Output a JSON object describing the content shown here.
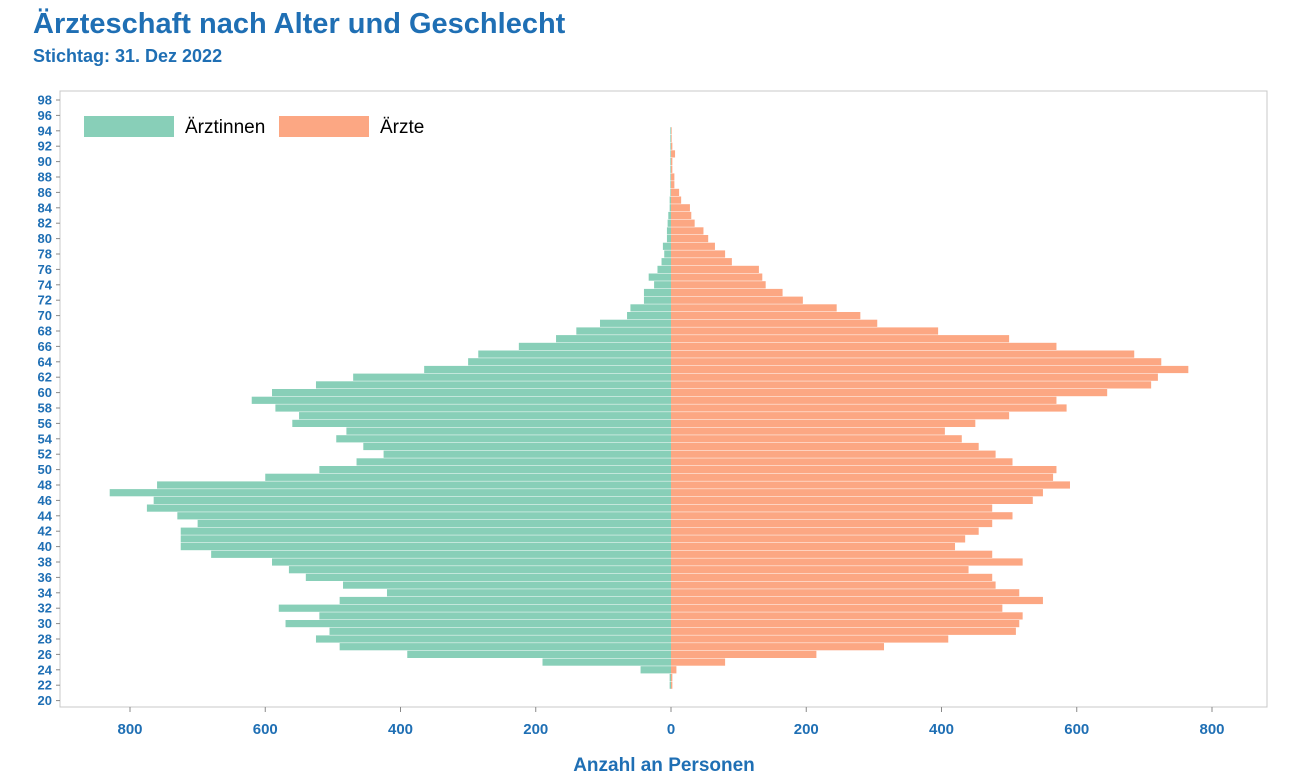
{
  "chart_data": {
    "type": "bar",
    "orientation": "horizontal-pyramid",
    "title": "Ärzteschaft nach Alter und Geschlecht",
    "subtitle": "Stichtag: 31. Dez 2022",
    "xlabel": "Anzahl an Personen",
    "ylabel": "",
    "x_ticks": [
      "800",
      "600",
      "400",
      "200",
      "0",
      "200",
      "400",
      "600",
      "800"
    ],
    "y_ticks": [
      "20",
      "22",
      "24",
      "26",
      "28",
      "30",
      "32",
      "34",
      "36",
      "38",
      "40",
      "42",
      "44",
      "46",
      "48",
      "50",
      "52",
      "54",
      "56",
      "58",
      "60",
      "62",
      "64",
      "66",
      "68",
      "70",
      "72",
      "74",
      "76",
      "78",
      "80",
      "82",
      "84",
      "86",
      "88",
      "90",
      "92",
      "94",
      "96",
      "98"
    ],
    "xlim": [
      -900,
      880
    ],
    "ylim": [
      19.5,
      98.5
    ],
    "grid": false,
    "legend_position": "top-left",
    "ages": [
      22,
      23,
      24,
      25,
      26,
      27,
      28,
      29,
      30,
      31,
      32,
      33,
      34,
      35,
      36,
      37,
      38,
      39,
      40,
      41,
      42,
      43,
      44,
      45,
      46,
      47,
      48,
      49,
      50,
      51,
      52,
      53,
      54,
      55,
      56,
      57,
      58,
      59,
      60,
      61,
      62,
      63,
      64,
      65,
      66,
      67,
      68,
      69,
      70,
      71,
      72,
      73,
      74,
      75,
      76,
      77,
      78,
      79,
      80,
      81,
      82,
      83,
      84,
      85,
      86,
      87,
      88,
      89,
      90,
      91,
      92,
      93,
      94
    ],
    "series": [
      {
        "name": "Ärztinnen",
        "color": "#88cfb8",
        "values": [
          2,
          2,
          45,
          190,
          390,
          490,
          525,
          505,
          570,
          520,
          580,
          490,
          420,
          485,
          540,
          565,
          590,
          680,
          725,
          725,
          725,
          700,
          730,
          775,
          765,
          830,
          760,
          600,
          520,
          465,
          425,
          455,
          495,
          480,
          560,
          550,
          585,
          620,
          590,
          525,
          470,
          365,
          300,
          285,
          225,
          170,
          140,
          105,
          65,
          60,
          40,
          40,
          25,
          33,
          20,
          14,
          10,
          12,
          6,
          6,
          5,
          4,
          2,
          2,
          1,
          1,
          1,
          1,
          1,
          1,
          1,
          1,
          1
        ]
      },
      {
        "name": "Ärzte",
        "color": "#fca783",
        "values": [
          2,
          2,
          8,
          80,
          215,
          315,
          410,
          510,
          515,
          520,
          490,
          550,
          515,
          480,
          475,
          440,
          520,
          475,
          420,
          435,
          455,
          475,
          505,
          475,
          535,
          550,
          590,
          565,
          570,
          505,
          480,
          455,
          430,
          405,
          450,
          500,
          585,
          570,
          645,
          710,
          720,
          765,
          725,
          685,
          570,
          500,
          395,
          305,
          280,
          245,
          195,
          165,
          140,
          135,
          130,
          90,
          80,
          65,
          55,
          48,
          35,
          30,
          28,
          15,
          12,
          5,
          5,
          2,
          2,
          6,
          2,
          1,
          1
        ]
      }
    ]
  }
}
